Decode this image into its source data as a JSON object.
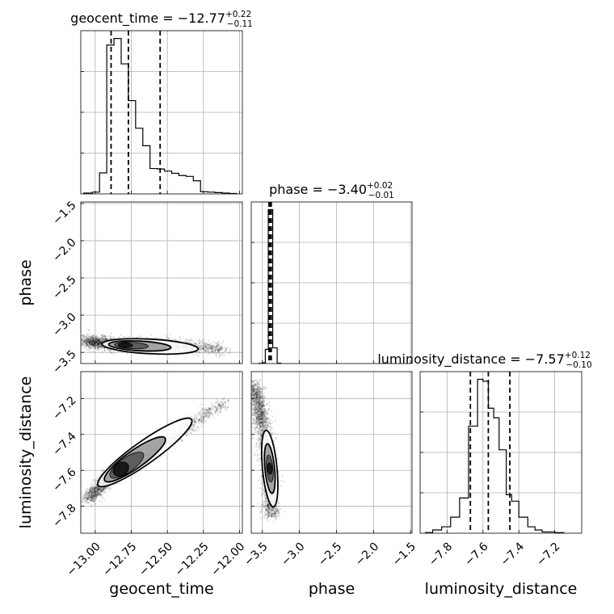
{
  "chart_data": {
    "type": "corner",
    "parameters": [
      {
        "name": "geocent_time",
        "title_value": "−12.77",
        "title_plus": "+0.22",
        "title_minus": "−0.11",
        "range": [
          -13.1,
          -11.98
        ],
        "ticks": [
          -13.0,
          -12.75,
          -12.5,
          -12.25,
          -12.0
        ],
        "tick_labels": [
          "−13.00",
          "−12.75",
          "−12.50",
          "−12.25",
          "−12.00"
        ],
        "quantiles": [
          -12.89,
          -12.77,
          -12.55
        ],
        "hist_edges": [
          -13.08,
          -13.02,
          -12.97,
          -12.92,
          -12.87,
          -12.82,
          -12.77,
          -12.72,
          -12.67,
          -12.62,
          -12.57,
          -12.52,
          -12.47,
          -12.42,
          -12.37,
          -12.32,
          -12.27,
          -12.22,
          -12.17,
          -12.12,
          -12.07,
          -12.02
        ],
        "hist_counts": [
          2,
          4,
          48,
          340,
          355,
          297,
          213,
          150,
          110,
          58,
          57,
          52,
          47,
          42,
          40,
          30,
          5,
          4,
          3,
          2,
          1
        ]
      },
      {
        "name": "phase",
        "title_value": "−3.40",
        "title_plus": "+0.02",
        "title_minus": "−0.01",
        "range": [
          -3.65,
          -1.48
        ],
        "ticks": [
          -3.5,
          -3.0,
          -2.5,
          -2.0,
          -1.5
        ],
        "tick_labels": [
          "−3.5",
          "−3.0",
          "−2.5",
          "−2.0",
          "−1.5"
        ],
        "quantiles": [
          -3.41,
          -3.4,
          -3.38
        ],
        "hist_edges": [
          -3.55,
          -3.5,
          -3.46,
          -3.42,
          -3.36,
          -3.3,
          -3.25
        ],
        "hist_counts": [
          1,
          5,
          90,
          980,
          100,
          3
        ]
      },
      {
        "name": "luminosity_distance",
        "title_value": "−7.57",
        "title_plus": "+0.12",
        "title_minus": "−0.10",
        "range": [
          -7.95,
          -7.05
        ],
        "ticks": [
          -7.8,
          -7.6,
          -7.4,
          -7.2
        ],
        "tick_labels": [
          "−7.8",
          "−7.6",
          "−7.4",
          "−7.2"
        ],
        "quantiles": [
          -7.67,
          -7.57,
          -7.45
        ],
        "hist_edges": [
          -7.92,
          -7.88,
          -7.83,
          -7.78,
          -7.73,
          -7.68,
          -7.63,
          -7.6,
          -7.57,
          -7.54,
          -7.51,
          -7.47,
          -7.44,
          -7.4,
          -7.35,
          -7.31,
          -7.27,
          -7.2,
          -7.15
        ],
        "hist_counts": [
          1,
          5,
          10,
          25,
          55,
          167,
          240,
          237,
          195,
          180,
          130,
          60,
          50,
          25,
          10,
          5,
          2,
          1
        ]
      }
    ],
    "pairs": [
      {
        "x": "geocent_time",
        "y": "phase",
        "center": [
          -12.82,
          -3.4
        ],
        "ridge": [
          [
            -13.08,
            -3.35
          ],
          [
            -12.85,
            -3.39
          ],
          [
            -12.6,
            -3.4
          ],
          [
            -12.35,
            -3.42
          ],
          [
            -12.1,
            -3.45
          ]
        ]
      },
      {
        "x": "geocent_time",
        "y": "luminosity_distance",
        "center": [
          -12.85,
          -7.61
        ],
        "ridge": [
          [
            -13.05,
            -7.76
          ],
          [
            -12.88,
            -7.62
          ],
          [
            -12.7,
            -7.53
          ],
          [
            -12.5,
            -7.45
          ],
          [
            -12.3,
            -7.32
          ],
          [
            -12.1,
            -7.22
          ]
        ]
      },
      {
        "x": "phase",
        "y": "luminosity_distance",
        "center": [
          -3.4,
          -7.59
        ],
        "ridge": [
          [
            -3.62,
            -7.12
          ],
          [
            -3.5,
            -7.35
          ],
          [
            -3.41,
            -7.58
          ],
          [
            -3.39,
            -7.75
          ],
          [
            -3.38,
            -7.86
          ]
        ]
      }
    ],
    "grid": true,
    "quantile_style": "dashed"
  }
}
